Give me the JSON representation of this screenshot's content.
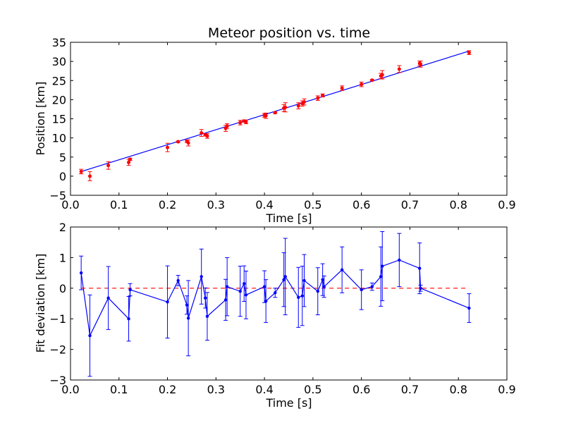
{
  "colors": {
    "fit_line": "#0000ff",
    "position_points": "#ff0000",
    "deviation_series": "#0000ff",
    "zero_line": "#ff0000",
    "background": "#ffffff",
    "axes": "#000000"
  },
  "chart_data": [
    {
      "type": "scatter",
      "title": "Meteor position vs. time",
      "xlabel": "Time [s]",
      "ylabel": "Position [km]",
      "xlim": [
        0.0,
        0.9
      ],
      "ylim": [
        -5,
        35
      ],
      "xticks": [
        0.0,
        0.1,
        0.2,
        0.3,
        0.4,
        0.5,
        0.6,
        0.7,
        0.8,
        0.9
      ],
      "xtick_labels": [
        "0.0",
        "0.1",
        "0.2",
        "0.3",
        "0.4",
        "0.5",
        "0.6",
        "0.7",
        "0.8",
        "0.9"
      ],
      "yticks": [
        -5,
        0,
        5,
        10,
        15,
        20,
        25,
        30,
        35
      ],
      "ytick_labels": [
        "−5",
        "0",
        "5",
        "10",
        "15",
        "20",
        "25",
        "30",
        "35"
      ],
      "grid": false,
      "points": {
        "x": [
          0.022,
          0.04,
          0.078,
          0.12,
          0.123,
          0.2,
          0.222,
          0.24,
          0.243,
          0.27,
          0.278,
          0.282,
          0.32,
          0.323,
          0.35,
          0.358,
          0.362,
          0.4,
          0.403,
          0.422,
          0.44,
          0.443,
          0.47,
          0.478,
          0.482,
          0.51,
          0.52,
          0.56,
          0.6,
          0.622,
          0.64,
          0.643,
          0.678,
          0.72,
          0.722,
          0.822
        ],
        "y": [
          1.2,
          0.0,
          2.8,
          3.6,
          4.4,
          7.5,
          9.0,
          9.1,
          8.7,
          11.3,
          10.8,
          10.5,
          12.5,
          13.1,
          14.0,
          14.4,
          14.2,
          15.9,
          15.8,
          16.6,
          17.8,
          18.0,
          18.4,
          19.0,
          19.4,
          20.4,
          21.1,
          23.0,
          24.0,
          25.1,
          26.2,
          26.5,
          28.0,
          29.5,
          29.3,
          32.3
        ],
        "yerr": [
          0.6,
          1.2,
          1.0,
          0.8,
          0.3,
          1.1,
          0.2,
          0.3,
          0.8,
          0.9,
          0.3,
          0.6,
          0.8,
          0.6,
          0.6,
          0.3,
          0.5,
          0.5,
          0.7,
          0.2,
          0.9,
          1.2,
          0.8,
          0.7,
          0.8,
          0.6,
          0.4,
          0.6,
          0.6,
          0.2,
          0.7,
          1.1,
          0.9,
          0.6,
          0.8,
          0.5
        ]
      },
      "fit_line": {
        "x": [
          0.022,
          0.822
        ],
        "y": [
          1.2,
          32.7
        ]
      }
    },
    {
      "type": "line",
      "title": "",
      "xlabel": "Time [s]",
      "ylabel": "Fit deviation [km]",
      "xlim": [
        0.0,
        0.9
      ],
      "ylim": [
        -3,
        2
      ],
      "xticks": [
        0.0,
        0.1,
        0.2,
        0.3,
        0.4,
        0.5,
        0.6,
        0.7,
        0.8,
        0.9
      ],
      "xtick_labels": [
        "0.0",
        "0.1",
        "0.2",
        "0.3",
        "0.4",
        "0.5",
        "0.6",
        "0.7",
        "0.8",
        "0.9"
      ],
      "yticks": [
        -3,
        -2,
        -1,
        0,
        1,
        2
      ],
      "ytick_labels": [
        "−3",
        "−2",
        "−1",
        "0",
        "1",
        "2"
      ],
      "grid": false,
      "series": {
        "x": [
          0.022,
          0.04,
          0.078,
          0.12,
          0.123,
          0.2,
          0.222,
          0.24,
          0.243,
          0.27,
          0.278,
          0.282,
          0.32,
          0.323,
          0.35,
          0.358,
          0.362,
          0.4,
          0.403,
          0.422,
          0.44,
          0.443,
          0.47,
          0.478,
          0.482,
          0.51,
          0.52,
          0.523,
          0.56,
          0.6,
          0.622,
          0.64,
          0.643,
          0.678,
          0.72,
          0.722,
          0.822
        ],
        "y": [
          0.5,
          -1.55,
          -0.32,
          -1.0,
          -0.05,
          -0.45,
          0.25,
          -0.55,
          -0.98,
          0.38,
          -0.32,
          -0.92,
          -0.38,
          0.05,
          -0.1,
          0.15,
          -0.22,
          0.05,
          -0.42,
          -0.15,
          0.28,
          0.38,
          -0.3,
          -0.25,
          0.25,
          -0.1,
          0.28,
          0.05,
          0.6,
          -0.05,
          0.05,
          0.38,
          0.72,
          0.92,
          0.65,
          0.0,
          -0.65
        ],
        "yerr": [
          0.55,
          1.33,
          1.03,
          0.73,
          0.2,
          1.18,
          0.17,
          0.3,
          1.23,
          0.9,
          0.33,
          0.78,
          0.67,
          0.95,
          0.82,
          0.58,
          0.78,
          0.52,
          0.7,
          0.15,
          0.88,
          1.25,
          0.98,
          0.97,
          0.85,
          0.77,
          0.52,
          0.35,
          0.75,
          0.65,
          0.12,
          0.97,
          1.13,
          0.87,
          0.83,
          0.1,
          0.47
        ]
      },
      "reference_line": {
        "x": [
          0.022,
          0.822
        ],
        "y": [
          0,
          0
        ],
        "style": "dashed"
      }
    }
  ]
}
